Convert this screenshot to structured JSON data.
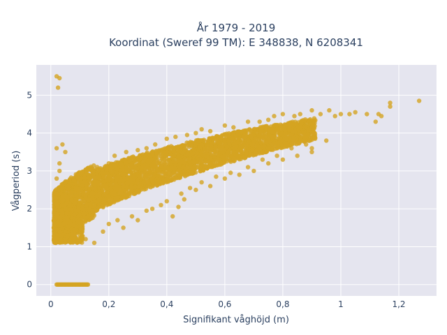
{
  "chart_data": {
    "type": "scatter",
    "title_line1": "År 1979 - 2019",
    "title_line2": "Koordinat (Sweref 99 TM): E 348838, N 6208341",
    "xlabel": "Signifikant våghöjd (m)",
    "ylabel": "Vågperiod (s)",
    "xlim": [
      -0.05,
      1.33
    ],
    "ylim": [
      -0.3,
      5.8
    ],
    "xticks": [
      0,
      0.2,
      0.4,
      0.6,
      0.8,
      1,
      1.2
    ],
    "xtick_labels": [
      "0",
      "0,2",
      "0,4",
      "0,6",
      "0,8",
      "1",
      "1,2"
    ],
    "yticks": [
      0,
      1,
      2,
      3,
      4,
      5
    ],
    "ytick_labels": [
      "0",
      "1",
      "2",
      "3",
      "4",
      "5"
    ],
    "grid": true,
    "marker_color": "#d4a422",
    "plot_background": "#e5e5ef",
    "points": [
      [
        0.02,
        5.5
      ],
      [
        0.025,
        5.2
      ],
      [
        0.03,
        5.45
      ],
      [
        0.02,
        3.6
      ],
      [
        0.04,
        3.7
      ],
      [
        0.03,
        3.2
      ],
      [
        0.02,
        2.8
      ],
      [
        0.04,
        2.6
      ],
      [
        0.02,
        2.4
      ],
      [
        0.05,
        3.5
      ],
      [
        0.03,
        3.0
      ],
      [
        1.27,
        4.85
      ],
      [
        1.17,
        4.8
      ],
      [
        1.17,
        4.7
      ],
      [
        1.13,
        4.5
      ],
      [
        1.14,
        4.45
      ],
      [
        1.12,
        4.3
      ],
      [
        1.09,
        4.5
      ],
      [
        1.05,
        4.55
      ],
      [
        1.03,
        4.5
      ],
      [
        1.0,
        4.5
      ],
      [
        0.98,
        4.45
      ],
      [
        0.96,
        4.6
      ],
      [
        0.93,
        4.5
      ],
      [
        0.9,
        4.6
      ],
      [
        0.86,
        4.5
      ],
      [
        0.84,
        4.45
      ],
      [
        0.8,
        4.5
      ],
      [
        0.77,
        4.45
      ],
      [
        0.75,
        4.35
      ],
      [
        0.72,
        4.3
      ],
      [
        0.68,
        4.3
      ],
      [
        0.63,
        4.15
      ],
      [
        0.6,
        4.2
      ],
      [
        0.55,
        4.05
      ],
      [
        0.52,
        4.1
      ],
      [
        0.5,
        4.0
      ],
      [
        0.47,
        3.95
      ],
      [
        0.43,
        3.9
      ],
      [
        0.4,
        3.85
      ],
      [
        0.36,
        3.7
      ],
      [
        0.33,
        3.6
      ],
      [
        0.3,
        3.55
      ],
      [
        0.26,
        3.5
      ],
      [
        0.22,
        3.4
      ],
      [
        0.2,
        3.2
      ],
      [
        0.16,
        3.1
      ],
      [
        0.13,
        2.9
      ],
      [
        0.1,
        2.8
      ],
      [
        0.08,
        2.75
      ],
      [
        0.06,
        2.6
      ],
      [
        0.12,
        1.2
      ],
      [
        0.15,
        1.1
      ],
      [
        0.2,
        1.6
      ],
      [
        0.25,
        1.5
      ],
      [
        0.3,
        1.7
      ],
      [
        0.35,
        2.0
      ],
      [
        0.4,
        2.2
      ],
      [
        0.42,
        1.8
      ],
      [
        0.44,
        2.05
      ],
      [
        0.46,
        2.25
      ],
      [
        0.5,
        2.5
      ],
      [
        0.45,
        2.4
      ],
      [
        0.55,
        2.6
      ],
      [
        0.6,
        2.8
      ],
      [
        0.65,
        2.9
      ],
      [
        0.7,
        3.0
      ],
      [
        0.75,
        3.2
      ],
      [
        0.8,
        3.3
      ],
      [
        0.85,
        3.4
      ],
      [
        0.9,
        3.6
      ],
      [
        0.95,
        3.8
      ],
      [
        0.9,
        3.5
      ],
      [
        0.88,
        3.7
      ],
      [
        0.83,
        3.6
      ],
      [
        0.78,
        3.4
      ],
      [
        0.73,
        3.3
      ],
      [
        0.68,
        3.1
      ],
      [
        0.62,
        2.95
      ],
      [
        0.57,
        2.85
      ],
      [
        0.52,
        2.7
      ],
      [
        0.48,
        2.55
      ],
      [
        0.38,
        2.1
      ],
      [
        0.33,
        1.95
      ],
      [
        0.28,
        1.8
      ],
      [
        0.23,
        1.7
      ],
      [
        0.18,
        1.4
      ],
      [
        0.05,
        1.4
      ],
      [
        0.01,
        1.5
      ],
      [
        0.015,
        1.6
      ],
      [
        0.02,
        1.45
      ],
      [
        0.03,
        1.3
      ],
      [
        0.05,
        1.15
      ],
      [
        0.08,
        1.2
      ],
      [
        0.1,
        1.3
      ]
    ],
    "zero_period_range": [
      0.02,
      0.13
    ]
  }
}
